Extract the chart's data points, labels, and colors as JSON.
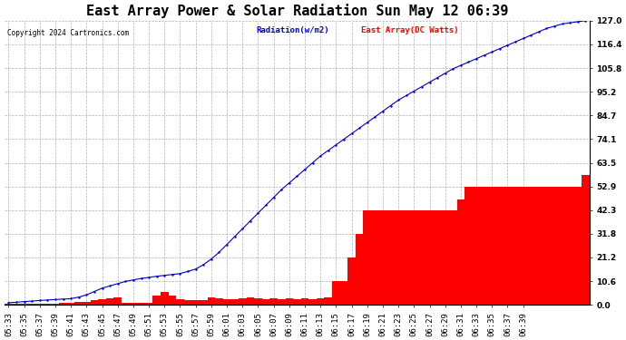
{
  "title": "East Array Power & Solar Radiation Sun May 12 06:39",
  "copyright": "Copyright 2024 Cartronics.com",
  "legend_radiation": "Radiation(w/m2)",
  "legend_east": "East Array(DC Watts)",
  "y_ticks": [
    0.0,
    10.6,
    21.2,
    31.8,
    42.3,
    52.9,
    63.5,
    74.1,
    84.7,
    95.2,
    105.8,
    116.4,
    127.0
  ],
  "ylim": [
    0.0,
    127.0
  ],
  "background_color": "#ffffff",
  "plot_bg_color": "#ffffff",
  "grid_color": "#b0b0b0",
  "radiation_color": "#0000cc",
  "east_array_color": "#ff0000",
  "title_fontsize": 11,
  "tick_fontsize": 6.5,
  "x_tick_indices": [
    0,
    2,
    4,
    6,
    8,
    10,
    12,
    14,
    16,
    18,
    20,
    22,
    24,
    26,
    28,
    30,
    32,
    34,
    36,
    38,
    40,
    42,
    44,
    46,
    48,
    50,
    52,
    54,
    56,
    58,
    60,
    62,
    64,
    66
  ],
  "x_tick_labels": [
    "05:33",
    "05:35",
    "05:37",
    "05:39",
    "05:41",
    "05:43",
    "05:45",
    "05:47",
    "05:49",
    "05:51",
    "05:53",
    "05:55",
    "05:57",
    "05:59",
    "06:01",
    "06:03",
    "06:05",
    "06:07",
    "06:09",
    "06:11",
    "06:13",
    "06:15",
    "06:17",
    "06:19",
    "06:21",
    "06:23",
    "06:25",
    "06:27",
    "06:29",
    "06:31",
    "06:33",
    "06:35",
    "06:37",
    "06:39"
  ],
  "radiation_values": [
    1.0,
    1.2,
    1.5,
    1.7,
    2.0,
    2.2,
    2.4,
    2.6,
    2.8,
    3.5,
    4.5,
    6.0,
    7.5,
    8.5,
    9.5,
    10.5,
    11.2,
    11.8,
    12.3,
    12.8,
    13.2,
    13.6,
    14.0,
    15.0,
    16.0,
    18.0,
    20.5,
    23.5,
    27.0,
    30.5,
    34.0,
    37.5,
    41.0,
    44.5,
    48.0,
    51.5,
    54.5,
    57.5,
    60.5,
    63.5,
    66.5,
    69.0,
    71.5,
    74.0,
    76.5,
    79.0,
    81.5,
    84.0,
    86.5,
    89.0,
    91.5,
    93.5,
    95.5,
    97.5,
    99.5,
    101.5,
    103.5,
    105.5,
    107.0,
    108.5,
    110.0,
    111.5,
    113.0,
    114.5,
    116.0,
    117.5,
    119.0,
    120.5,
    122.0,
    123.5,
    124.5,
    125.5,
    126.0,
    126.5,
    127.0
  ],
  "east_array_values": [
    0.5,
    0.5,
    0.5,
    0.5,
    0.5,
    0.5,
    0.5,
    0.8,
    1.0,
    1.2,
    1.5,
    2.0,
    2.5,
    3.0,
    3.5,
    1.0,
    1.0,
    1.0,
    1.0,
    4.0,
    6.0,
    4.0,
    2.5,
    2.0,
    2.0,
    2.0,
    3.5,
    3.0,
    2.5,
    2.5,
    3.0,
    3.5,
    3.0,
    2.5,
    3.0,
    2.5,
    3.0,
    2.5,
    3.0,
    2.5,
    3.0,
    3.5,
    10.6,
    10.6,
    21.2,
    31.8,
    42.3,
    42.3,
    42.3,
    42.3,
    42.3,
    42.3,
    42.3,
    42.3,
    42.3,
    42.3,
    42.3,
    42.3,
    47.0,
    52.9,
    52.9,
    52.9,
    52.9,
    52.9,
    52.9,
    52.9,
    52.9,
    52.9,
    52.9,
    52.9,
    52.9,
    52.9,
    52.9,
    52.9,
    58.0
  ]
}
